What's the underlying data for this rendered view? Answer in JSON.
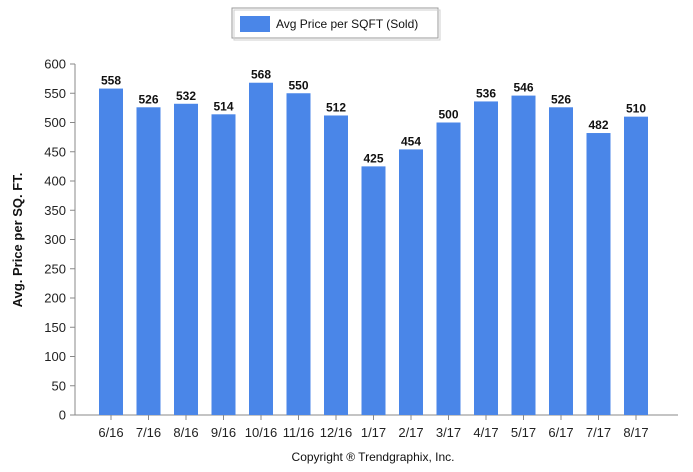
{
  "chart_data": {
    "type": "bar",
    "categories": [
      "6/16",
      "7/16",
      "8/16",
      "9/16",
      "10/16",
      "11/16",
      "12/16",
      "1/17",
      "2/17",
      "3/17",
      "4/17",
      "5/17",
      "6/17",
      "7/17",
      "8/17"
    ],
    "series": [
      {
        "name": "Avg Price per SQFT (Sold)",
        "values": [
          558,
          526,
          532,
          514,
          568,
          550,
          512,
          425,
          454,
          500,
          536,
          546,
          526,
          482,
          510
        ],
        "color": "#4a86e8"
      }
    ],
    "ylabel": "Avg. Price per SQ. FT.",
    "xlabel": "",
    "ylim": [
      0,
      600
    ],
    "yticks": [
      0,
      50,
      100,
      150,
      200,
      250,
      300,
      350,
      400,
      450,
      500,
      550,
      600
    ],
    "grid": false,
    "legend": "top-center",
    "show_data_labels": true
  },
  "footer": {
    "copyright": "Copyright ® Trendgraphix, Inc."
  }
}
